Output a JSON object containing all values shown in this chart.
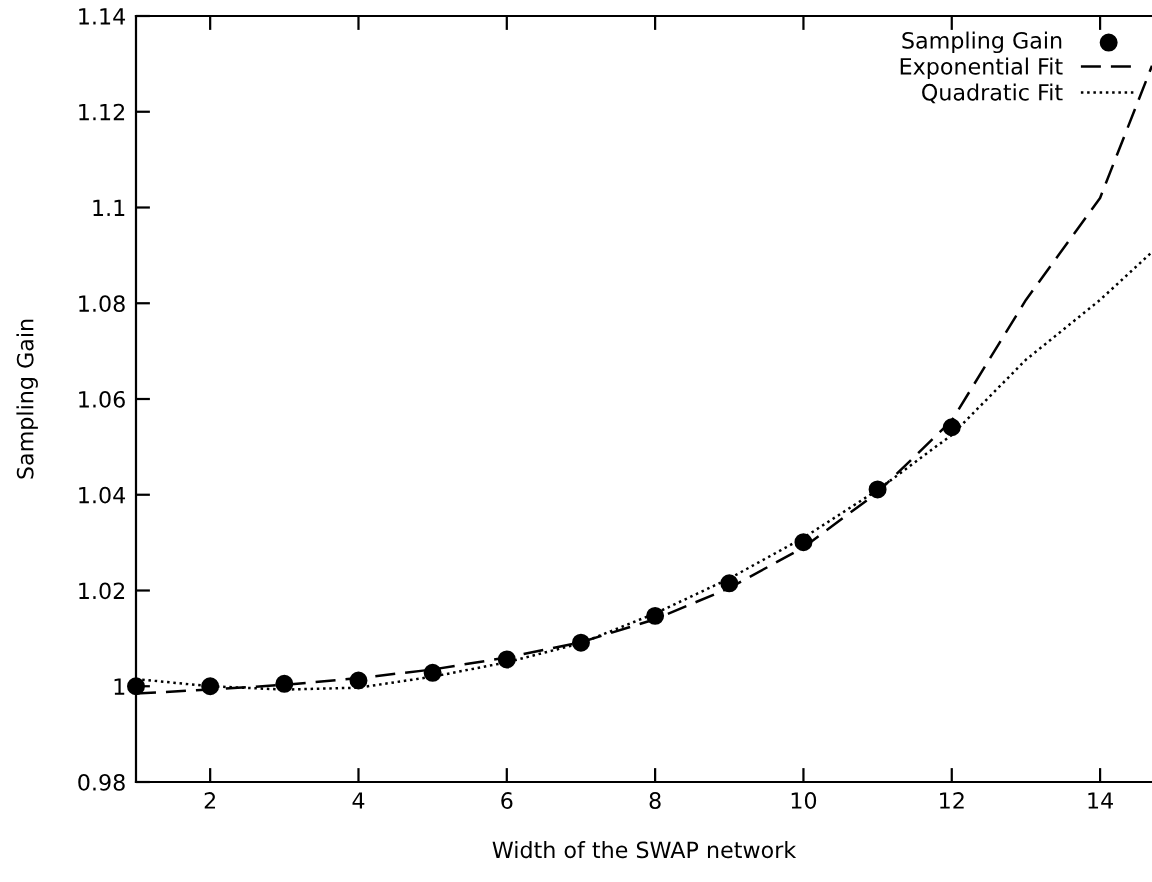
{
  "chart_data": {
    "type": "scatter",
    "xlabel": "Width of the SWAP network",
    "ylabel": "Sampling Gain",
    "xlim": [
      1,
      14.7
    ],
    "ylim": [
      0.98,
      1.14
    ],
    "xticks": [
      2,
      4,
      6,
      8,
      10,
      12,
      14
    ],
    "yticks": [
      0.98,
      1,
      1.02,
      1.04,
      1.06,
      1.08,
      {
        "value": 1.1,
        "label": "1.1"
      },
      1.12,
      1.14
    ],
    "legend": "top right",
    "grid": false,
    "series": [
      {
        "name": "Sampling Gain",
        "marker": "circle",
        "color": "#000000",
        "x": [
          1,
          2,
          3,
          4,
          5,
          6,
          7,
          8,
          9,
          10,
          11,
          12
        ],
        "values": [
          1.0,
          1.0,
          1.0005,
          1.0012,
          1.0028,
          1.0056,
          1.0091,
          1.0147,
          1.0215,
          1.0301,
          1.0411,
          1.0541
        ]
      },
      {
        "name": "Exponential Fit",
        "type": "line",
        "line_style": "dashed",
        "color": "#000000",
        "x": [
          1,
          2,
          3,
          4,
          5,
          6,
          7,
          8,
          9,
          10,
          11,
          12,
          13,
          14,
          14.7
        ],
        "values": [
          0.9985,
          0.9993,
          1.0003,
          1.0017,
          1.0035,
          1.006,
          1.0092,
          1.014,
          1.0205,
          1.029,
          1.0405,
          1.0555,
          1.0807,
          1.102,
          1.1296
        ]
      },
      {
        "name": "Quadratic Fit",
        "type": "line",
        "line_style": "dotted",
        "color": "#000000",
        "x": [
          1,
          2,
          3,
          4,
          5,
          6,
          7,
          8,
          9,
          10,
          11,
          12,
          13,
          14,
          14.7
        ],
        "values": [
          1.0015,
          1.0,
          0.9993,
          0.9997,
          1.002,
          1.005,
          1.009,
          1.0152,
          1.0225,
          1.031,
          1.041,
          1.0525,
          1.0682,
          1.0807,
          1.0907
        ]
      }
    ]
  }
}
